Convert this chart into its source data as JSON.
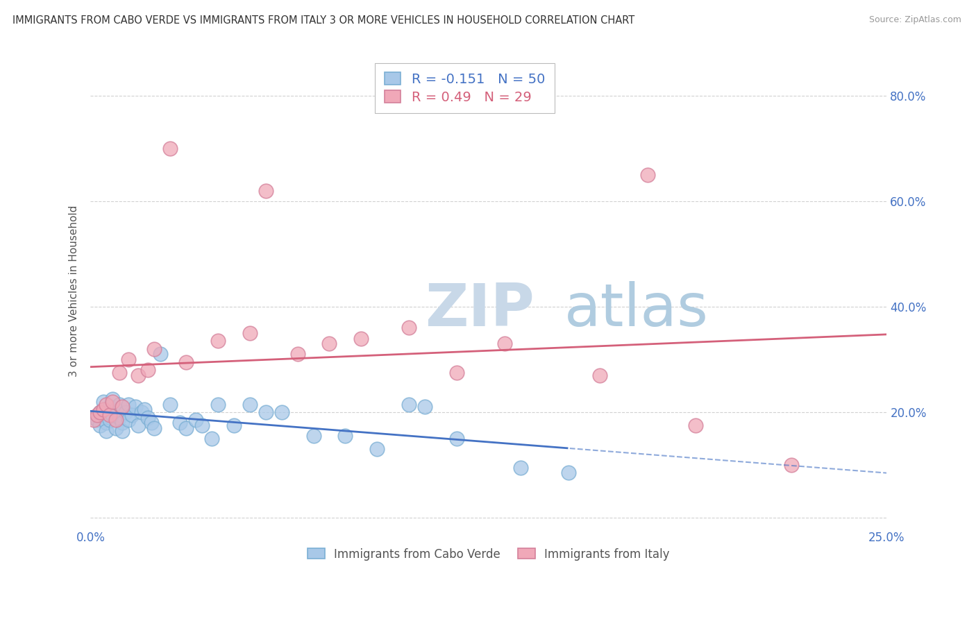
{
  "title": "IMMIGRANTS FROM CABO VERDE VS IMMIGRANTS FROM ITALY 3 OR MORE VEHICLES IN HOUSEHOLD CORRELATION CHART",
  "source": "Source: ZipAtlas.com",
  "ylabel": "3 or more Vehicles in Household",
  "xlim": [
    0.0,
    0.25
  ],
  "ylim": [
    -0.02,
    0.88
  ],
  "cabo_verde_R": -0.151,
  "cabo_verde_N": 50,
  "italy_R": 0.49,
  "italy_N": 29,
  "cabo_verde_color": "#A8C8E8",
  "cabo_verde_edge": "#7BAFD4",
  "italy_color": "#F0A8B8",
  "italy_edge": "#D4809A",
  "cabo_verde_line_color": "#4472C4",
  "italy_line_color": "#D4607A",
  "background_color": "#FFFFFF",
  "grid_color": "#CCCCCC",
  "cv_x": [
    0.001,
    0.002,
    0.003,
    0.003,
    0.004,
    0.004,
    0.005,
    0.005,
    0.006,
    0.006,
    0.006,
    0.007,
    0.007,
    0.008,
    0.008,
    0.009,
    0.009,
    0.01,
    0.01,
    0.011,
    0.012,
    0.012,
    0.013,
    0.014,
    0.015,
    0.016,
    0.017,
    0.018,
    0.019,
    0.02,
    0.022,
    0.025,
    0.028,
    0.03,
    0.033,
    0.035,
    0.038,
    0.04,
    0.045,
    0.05,
    0.055,
    0.06,
    0.07,
    0.08,
    0.09,
    0.1,
    0.105,
    0.115,
    0.135,
    0.15
  ],
  "cv_y": [
    0.19,
    0.185,
    0.2,
    0.175,
    0.22,
    0.195,
    0.18,
    0.165,
    0.21,
    0.2,
    0.185,
    0.225,
    0.195,
    0.17,
    0.205,
    0.19,
    0.215,
    0.18,
    0.165,
    0.2,
    0.215,
    0.185,
    0.195,
    0.21,
    0.175,
    0.2,
    0.205,
    0.19,
    0.18,
    0.17,
    0.31,
    0.215,
    0.18,
    0.17,
    0.185,
    0.175,
    0.15,
    0.215,
    0.175,
    0.215,
    0.2,
    0.2,
    0.155,
    0.155,
    0.13,
    0.215,
    0.21,
    0.15,
    0.095,
    0.085
  ],
  "it_x": [
    0.001,
    0.002,
    0.003,
    0.004,
    0.005,
    0.006,
    0.007,
    0.008,
    0.009,
    0.01,
    0.012,
    0.015,
    0.018,
    0.02,
    0.025,
    0.03,
    0.04,
    0.05,
    0.055,
    0.065,
    0.075,
    0.085,
    0.1,
    0.115,
    0.13,
    0.16,
    0.175,
    0.19,
    0.22
  ],
  "it_y": [
    0.185,
    0.195,
    0.2,
    0.205,
    0.215,
    0.195,
    0.22,
    0.185,
    0.275,
    0.21,
    0.3,
    0.27,
    0.28,
    0.32,
    0.7,
    0.295,
    0.335,
    0.35,
    0.62,
    0.31,
    0.33,
    0.34,
    0.36,
    0.275,
    0.33,
    0.27,
    0.65,
    0.175,
    0.1
  ]
}
